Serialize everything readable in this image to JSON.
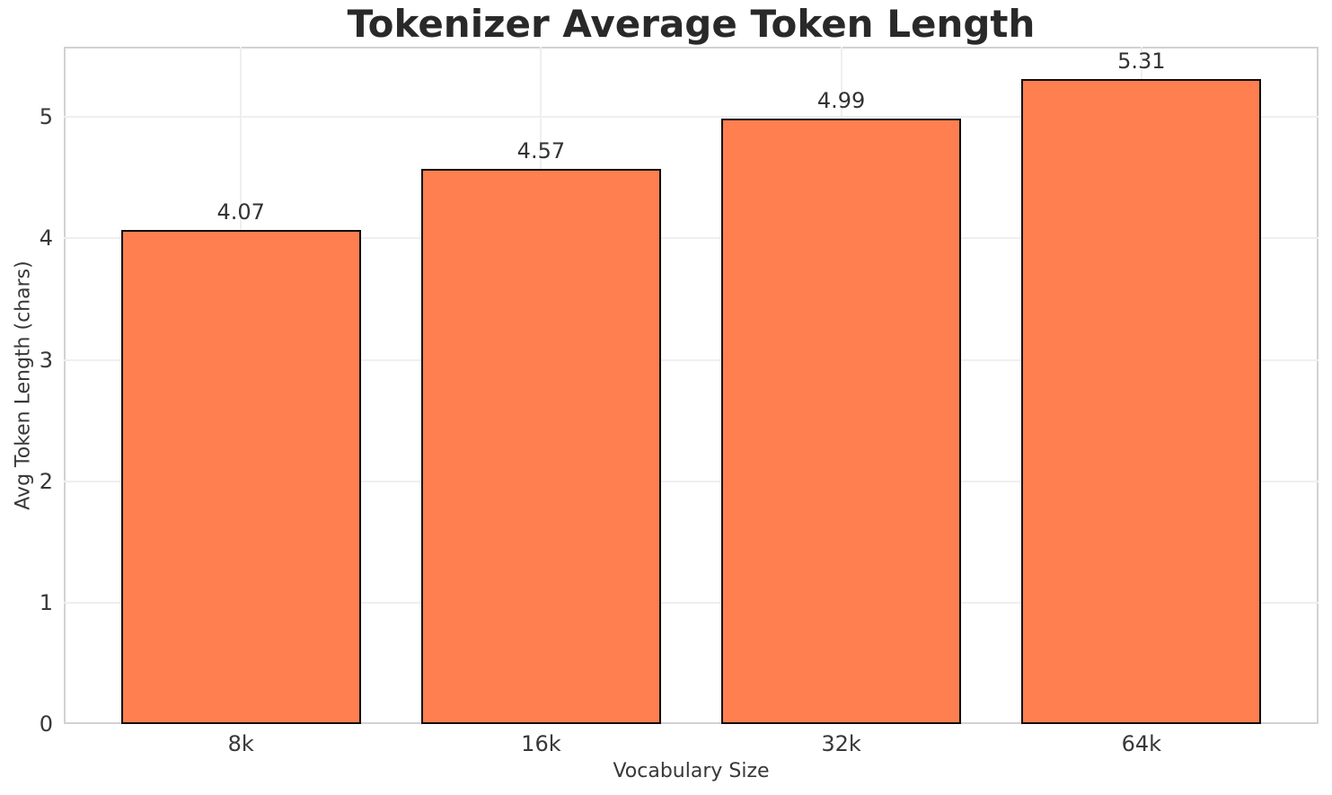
{
  "chart_data": {
    "type": "bar",
    "title": "Tokenizer Average Token Length",
    "xlabel": "Vocabulary Size",
    "ylabel": "Avg Token Length (chars)",
    "categories": [
      "8k",
      "16k",
      "32k",
      "64k"
    ],
    "values": [
      4.07,
      4.57,
      4.99,
      5.31
    ],
    "value_labels": [
      "4.07",
      "4.57",
      "4.99",
      "5.31"
    ],
    "yticks": [
      0,
      1,
      2,
      3,
      4,
      5
    ],
    "ylim": [
      0,
      5.58
    ],
    "grid": "both",
    "legend": "none",
    "bar_width_fraction": 0.8,
    "colors": {
      "bar_fill": "#FF7F50",
      "bar_edge": "#0d0d0d",
      "grid_line": "#efefef",
      "spine": "#d2d2d2",
      "title_text": "#292929",
      "tick_text": "#383838",
      "value_text": "#333333",
      "background": "#ffffff"
    }
  }
}
